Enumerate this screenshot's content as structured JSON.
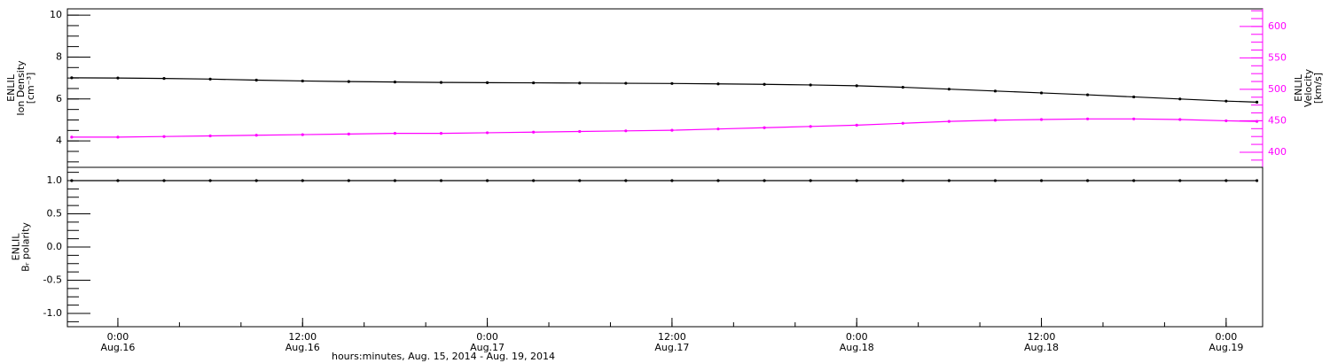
{
  "chart_data": [
    {
      "type": "line",
      "ylabel": [
        "ENLIL",
        "Ion Density",
        "[cm⁻³]"
      ],
      "y2label": [
        "ENLIL",
        "Velocity",
        "[km/s]"
      ],
      "x": [
        21,
        24,
        27,
        30,
        33,
        36,
        39,
        42,
        45,
        48,
        51,
        54,
        57,
        60,
        63,
        66,
        69,
        72,
        75,
        78,
        81,
        84,
        87,
        90,
        93,
        96,
        98
      ],
      "xlim": [
        20.72,
        98.37
      ],
      "ylim": [
        2.74,
        10.3
      ],
      "yticks": [
        4,
        6,
        8,
        10
      ],
      "y2lim": [
        376,
        628
      ],
      "y2ticks": [
        400,
        450,
        500,
        550,
        600
      ],
      "series": [
        {
          "name": "Ion Density",
          "color": "#000000",
          "values": [
            7.01,
            7.0,
            6.98,
            6.95,
            6.9,
            6.86,
            6.83,
            6.81,
            6.79,
            6.78,
            6.77,
            6.76,
            6.75,
            6.74,
            6.72,
            6.7,
            6.67,
            6.63,
            6.56,
            6.47,
            6.38,
            6.29,
            6.2,
            6.1,
            6.0,
            5.9,
            5.85
          ]
        },
        {
          "name": "Velocity",
          "color": "#ff00ff",
          "axis": "y2",
          "values": [
            424,
            424,
            425,
            426,
            427,
            428,
            429,
            430,
            430,
            431,
            432,
            433,
            434,
            435,
            437,
            439,
            441,
            443,
            446,
            449,
            451,
            452,
            453,
            453,
            452,
            450,
            449
          ]
        }
      ]
    },
    {
      "type": "line",
      "ylabel": [
        "ENLIL",
        "Bᵣ polarity"
      ],
      "x": [
        21,
        24,
        27,
        30,
        33,
        36,
        39,
        42,
        45,
        48,
        51,
        54,
        57,
        60,
        63,
        66,
        69,
        72,
        75,
        78,
        81,
        84,
        87,
        90,
        93,
        96,
        98
      ],
      "xlim": [
        20.72,
        98.37
      ],
      "ylim": [
        -1.2,
        1.2
      ],
      "yticks": [
        {
          "value": -1,
          "label": "-1.0"
        },
        -0.5,
        {
          "value": 0,
          "label": "0.0"
        },
        0.5,
        {
          "value": 1,
          "label": "1.0"
        }
      ],
      "xlabel": "hours:minutes, Aug. 15, 2014 - Aug. 19, 2014",
      "xticks": [
        {
          "value": 24,
          "label": "0:00",
          "date": "Aug.16"
        },
        {
          "value": 36,
          "label": "12:00",
          "date": "Aug.16"
        },
        {
          "value": 48,
          "label": "0:00",
          "date": "Aug.17"
        },
        {
          "value": 60,
          "label": "12:00",
          "date": "Aug.17"
        },
        {
          "value": 72,
          "label": "0:00",
          "date": "Aug.18"
        },
        {
          "value": 84,
          "label": "12:00",
          "date": "Aug.18"
        },
        {
          "value": 96,
          "label": "0:00",
          "date": "Aug.19"
        }
      ],
      "series": [
        {
          "name": "Bᵣ polarity",
          "color": "#000000",
          "values": [
            1,
            1,
            1,
            1,
            1,
            1,
            1,
            1,
            1,
            1,
            1,
            1,
            1,
            1,
            1,
            1,
            1,
            1,
            1,
            1,
            1,
            1,
            1,
            1,
            1,
            1,
            1
          ]
        }
      ]
    }
  ]
}
